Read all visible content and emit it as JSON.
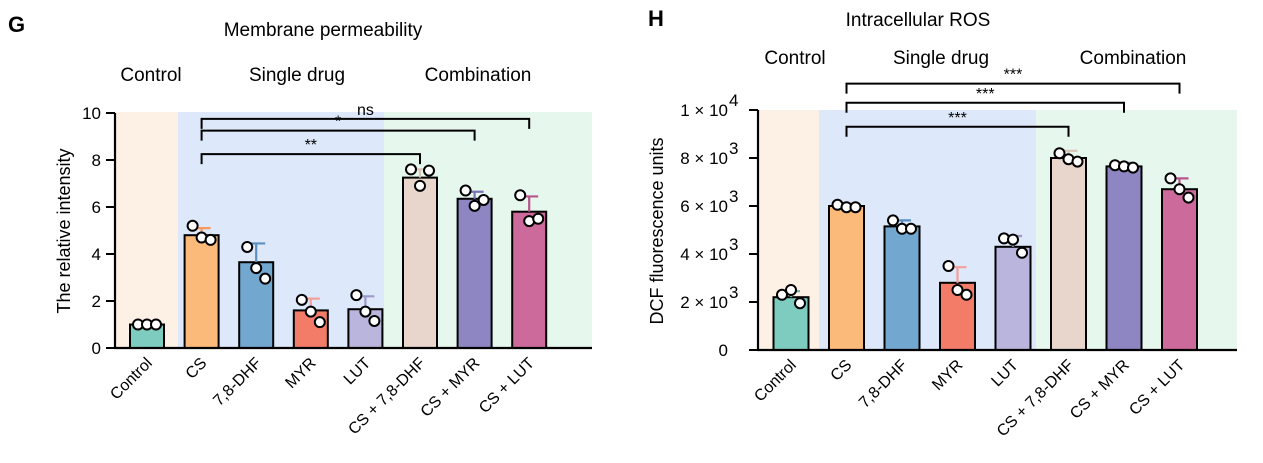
{
  "chart_data": [
    {
      "type": "bar",
      "panel": "G",
      "title": "Membrane permeability",
      "ylabel": "The relative intensity",
      "ylim": [
        0,
        10
      ],
      "yticks": [
        "0",
        "2",
        "4",
        "6",
        "8",
        "10"
      ],
      "group_labels": [
        "Control",
        "Single drug",
        "Combination"
      ],
      "categories": [
        "Control",
        "CS",
        "7,8-DHF",
        "MYR",
        "LUT",
        "CS + 7,8-DHF",
        "CS + MYR",
        "CS + LUT"
      ],
      "values": [
        1.0,
        4.8,
        3.65,
        1.6,
        1.65,
        7.25,
        6.35,
        5.8
      ],
      "errors": [
        0.05,
        0.3,
        0.8,
        0.5,
        0.55,
        0.35,
        0.3,
        0.65
      ],
      "points": [
        [
          1.0,
          1.0,
          1.0
        ],
        [
          5.2,
          4.7,
          4.6
        ],
        [
          4.3,
          3.4,
          2.95
        ],
        [
          2.05,
          1.55,
          1.1
        ],
        [
          2.25,
          1.55,
          1.15
        ],
        [
          7.6,
          6.9,
          7.55
        ],
        [
          6.7,
          6.05,
          6.3
        ],
        [
          6.5,
          5.4,
          5.5
        ]
      ],
      "colors": [
        "#7ecbbf",
        "#fbb97a",
        "#72a7cf",
        "#f37c68",
        "#b9b5dc",
        "#e8d6cc",
        "#8d86c2",
        "#cd6a9c"
      ],
      "error_colors": [
        "#6ab0a4",
        "#f59a60",
        "#5a8fbf",
        "#f4a09a",
        "#9c99c8",
        "#d9c4b8",
        "#7b74b5",
        "#b8558a"
      ],
      "comparisons": [
        {
          "from": "CS",
          "to": "CS + 7,8-DHF",
          "label": "**",
          "y": 8.25
        },
        {
          "from": "CS",
          "to": "CS + MYR",
          "label": "*",
          "y": 9.25
        },
        {
          "from": "CS",
          "to": "CS + LUT",
          "label": "ns",
          "y": 9.75
        }
      ]
    },
    {
      "type": "bar",
      "panel": "H",
      "title": "Intracellular  ROS",
      "ylabel": "DCF fluorescence units",
      "ylim": [
        0,
        10000
      ],
      "yticks": [
        "0",
        "2 × 10",
        "4 × 10",
        "6 × 10",
        "8 × 10",
        "1 × 10"
      ],
      "ytick_exponents": [
        "",
        "3",
        "3",
        "3",
        "3",
        "4"
      ],
      "group_labels": [
        "Control",
        "Single drug",
        "Combination"
      ],
      "categories": [
        "Control",
        "CS",
        "7,8-DHF",
        "MYR",
        "LUT",
        "CS + 7,8-DHF",
        "CS + MYR",
        "CS + LUT"
      ],
      "values": [
        2200,
        6000,
        5150,
        2800,
        4300,
        8000,
        7650,
        6700
      ],
      "errors": [
        250,
        80,
        250,
        650,
        450,
        300,
        150,
        450
      ],
      "points": [
        [
          2300,
          2500,
          1950
        ],
        [
          6050,
          5950,
          5950
        ],
        [
          5400,
          5050,
          5050
        ],
        [
          3500,
          2500,
          2300
        ],
        [
          4650,
          4600,
          4050
        ],
        [
          8200,
          7950,
          7850
        ],
        [
          7700,
          7650,
          7600
        ],
        [
          7150,
          6700,
          6350
        ]
      ],
      "colors": [
        "#7ecbbf",
        "#fbb97a",
        "#72a7cf",
        "#f37c68",
        "#b9b5dc",
        "#e8d6cc",
        "#8d86c2",
        "#cd6a9c"
      ],
      "error_colors": [
        "#6ab0a4",
        "#f59a60",
        "#5a8fbf",
        "#f4a09a",
        "#9c99c8",
        "#d9c4b8",
        "#7b74b5",
        "#b8558a"
      ],
      "comparisons": [
        {
          "from": "CS",
          "to": "CS + 7,8-DHF",
          "label": "***",
          "y": 9300
        },
        {
          "from": "CS",
          "to": "CS + MYR",
          "label": "***",
          "y": 10300
        },
        {
          "from": "CS",
          "to": "CS + LUT",
          "label": "***",
          "y": 11100
        }
      ]
    }
  ],
  "background_colors": {
    "control": "#fdf0e4",
    "single": "#dde8fb",
    "combination": "#e6f8ee"
  }
}
